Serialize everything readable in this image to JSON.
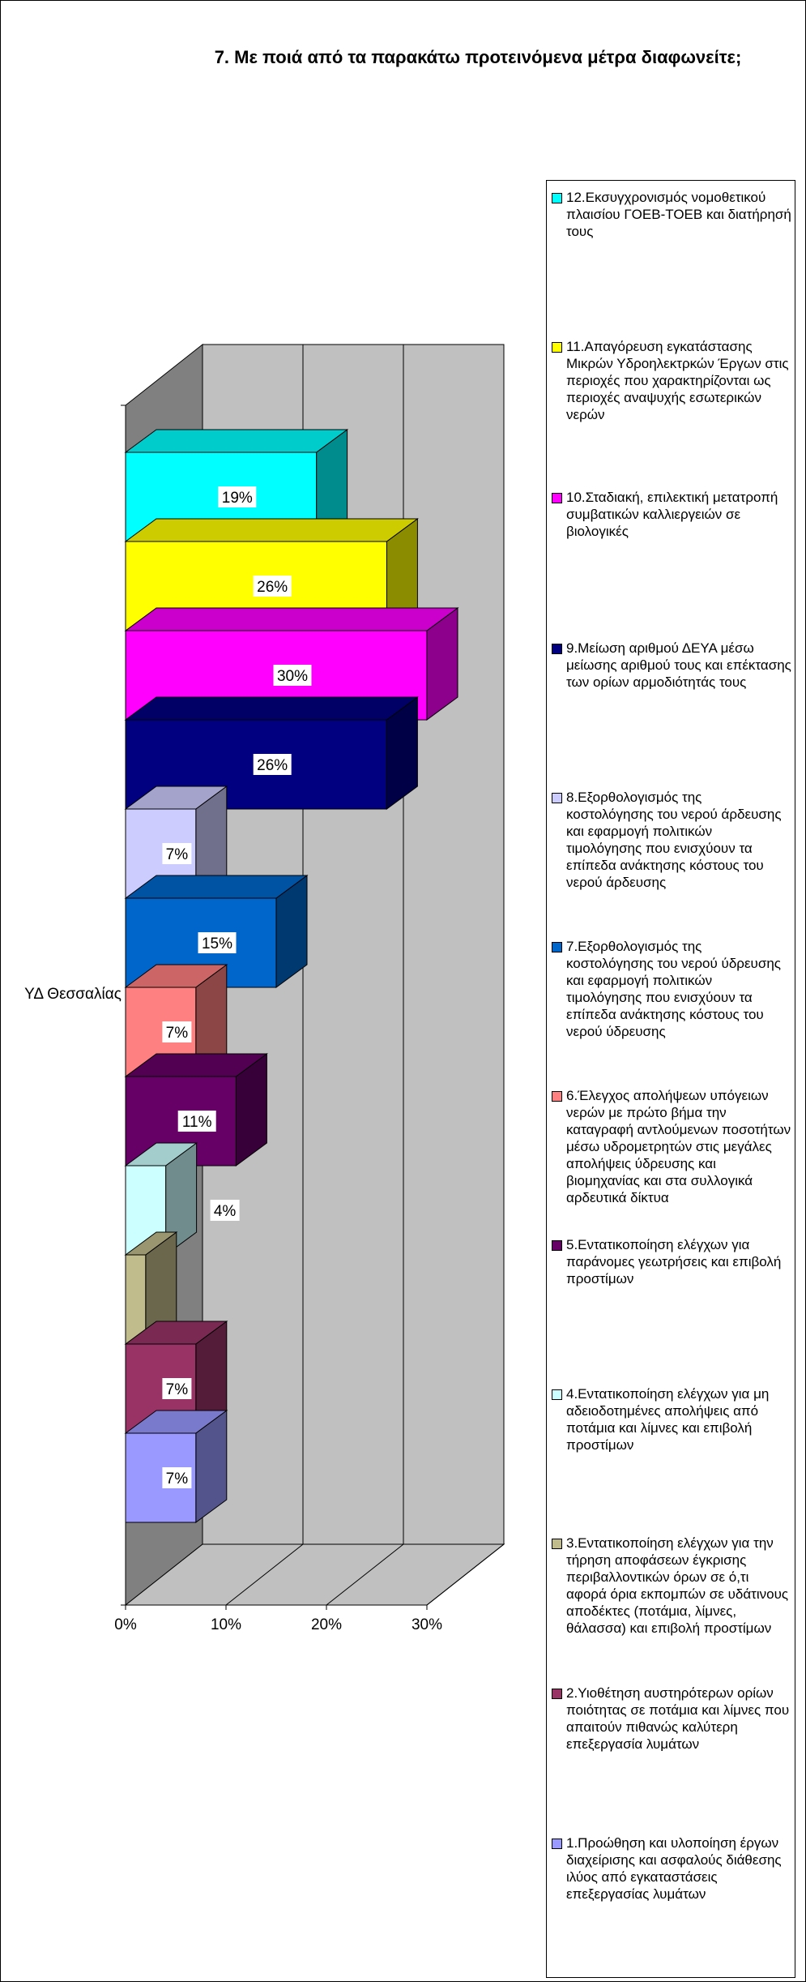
{
  "chart_data": {
    "type": "bar",
    "orientation": "horizontal",
    "title": "7. Με ποιά από τα παρακάτω προτεινόμενα μέτρα διαφωνείτε;",
    "category": "ΥΔ Θεσσαλίας",
    "xlim": [
      0,
      30
    ],
    "xticks": [
      "0%",
      "10%",
      "20%",
      "30%"
    ],
    "grid": true,
    "legend_position": "right",
    "series": [
      {
        "name": "12.Εκσυγχρονισμός νομοθετικού πλαισίου ΓΟΕΒ-ΤΟΕΒ και διατήρησή τους",
        "value": 19,
        "label": "19%",
        "color": "#00ffff"
      },
      {
        "name": "11.Απαγόρευση εγκατάστασης Μικρών Υδροηλεκτρκών Έργων στις περιοχές που χαρακτηρίζονται ως περιοχές αναψυχής εσωτερικών νερών",
        "value": 26,
        "label": "26%",
        "color": "#ffff00"
      },
      {
        "name": "10.Σταδιακή, επιλεκτική μετατροπή συμβατικών καλλιεργειών σε βιολογικές",
        "value": 30,
        "label": "30%",
        "color": "#ff00ff"
      },
      {
        "name": "9.Μείωση αριθμού ΔΕΥΑ μέσω μείωσης αριθμού τους και επέκτασης των ορίων αρμοδιότητάς τους",
        "value": 26,
        "label": "26%",
        "color": "#000080"
      },
      {
        "name": "8.Εξορθολογισμός της κοστολόγησης του νερού άρδευσης και εφαρμογή πολιτικών τιμολόγησης που ενισχύουν τα επίπεδα ανάκτησης κόστους του νερού άρδευσης",
        "value": 7,
        "label": "7%",
        "color": "#ccccff"
      },
      {
        "name": "7.Εξορθολογισμός της κοστολόγησης του νερού ύδρευσης και εφαρμογή πολιτικών τιμολόγησης που ενισχύουν τα επίπεδα ανάκτησης κόστους του νερού ύδρευσης",
        "value": 15,
        "label": "15%",
        "color": "#0066cc"
      },
      {
        "name": "6.Έλεγχος απολήψεων υπόγειων νερών με πρώτο βήμα την καταγραφή αντλούμενων ποσοτήτων μέσω υδρομετρητών στις μεγάλες απολήψεις ύδρευσης και βιομηχανίας και στα συλλογικά αρδευτικά δίκτυα",
        "value": 7,
        "label": "7%",
        "color": "#ff8080"
      },
      {
        "name": "5.Εντατικοποίηση ελέγχων για παράνομες γεωτρήσεις και επιβολή προστίμων",
        "value": 11,
        "label": "11%",
        "color": "#660066"
      },
      {
        "name": "4.Εντατικοποίηση ελέγχων για μη αδειοδοτημένες απολήψεις από ποτάμια και λίμνες και επιβολή προστίμων",
        "value": 4,
        "label": "4%",
        "color": "#ccffff"
      },
      {
        "name": "3.Εντατικοποίηση ελέγχων για την τήρηση αποφάσεων έγκρισης περιβαλλοντικών όρων σε ό,τι αφορά όρια εκπομπών σε υδάτινους αποδέκτες (ποτάμια, λίμνες, θάλασσα) και επιβολή προστίμων",
        "value": 2,
        "label": "",
        "color": "#c0bc8c"
      },
      {
        "name": "2.Υιοθέτηση αυστηρότερων ορίων ποιότητας σε ποτάμια και λίμνες που απαιτούν πιθανώς καλύτερη επεξεργασία λυμάτων",
        "value": 7,
        "label": "7%",
        "color": "#993366"
      },
      {
        "name": "1.Προώθηση και υλοποίηση έργων διαχείρισης και ασφαλούς διάθεσης ιλύος από εγκαταστάσεις επεξεργασίας λυμάτων",
        "value": 7,
        "label": "7%",
        "color": "#9999ff"
      }
    ]
  }
}
